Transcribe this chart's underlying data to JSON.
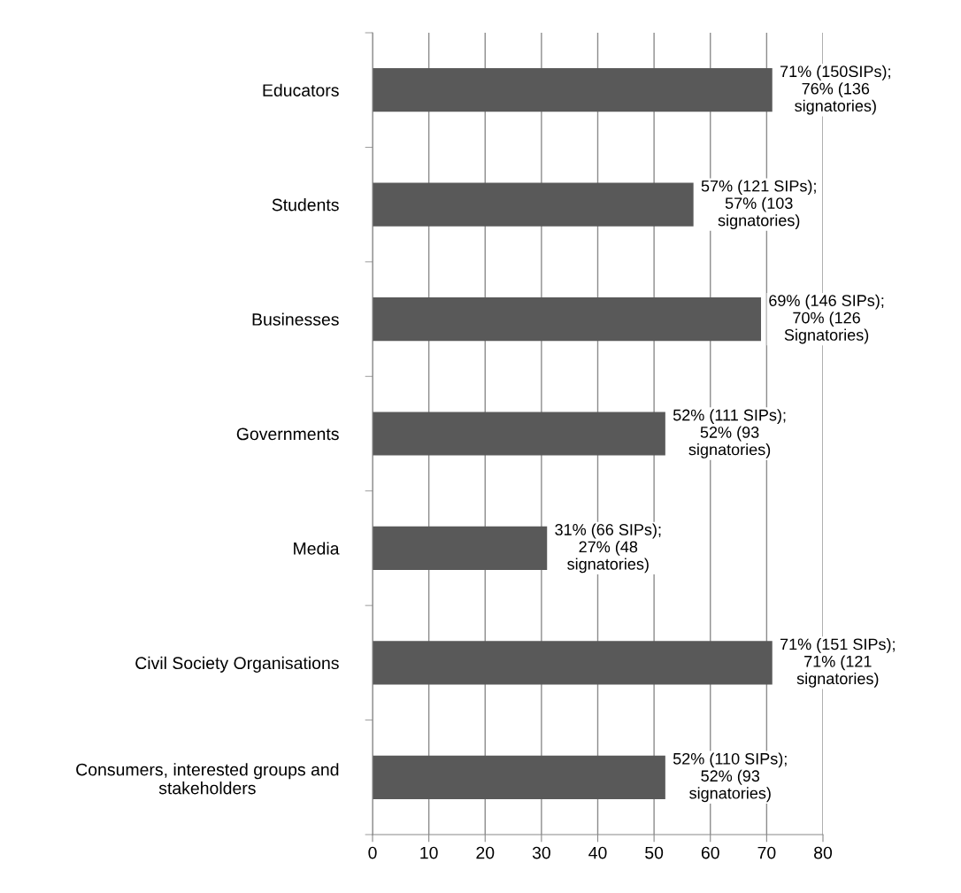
{
  "chart_data": {
    "type": "bar",
    "orientation": "horizontal",
    "categories": [
      "Educators",
      "Students",
      "Businesses",
      "Governments",
      "Media",
      "Civil Society Organisations",
      "Consumers, interested groups and\nstakeholders"
    ],
    "values": [
      71,
      57,
      69,
      52,
      31,
      71,
      52
    ],
    "value_labels": [
      "71% (150SIPs);\n76% (136\nsignatories)",
      "57% (121 SIPs);\n57% (103\nsignatories)",
      "69% (146 SIPs);\n70% (126\nSignatories)",
      "52% (111 SIPs);\n52% (93\nsignatories)",
      "31% (66 SIPs);\n27% (48\nsignatories)",
      "71% (151 SIPs);\n71% (121\nsignatories)",
      "52% (110 SIPs);\n52% (93\nsignatories)"
    ],
    "color": "#595959",
    "xlim": [
      0,
      80
    ],
    "xticks": [
      0,
      10,
      20,
      30,
      40,
      50,
      60,
      70,
      80
    ],
    "grid": "x"
  }
}
